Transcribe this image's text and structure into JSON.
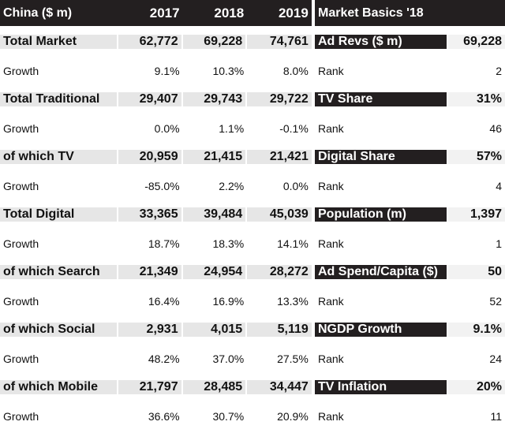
{
  "left": {
    "header": {
      "label": "China ($ m)",
      "years": [
        "2017",
        "2018",
        "2019"
      ]
    },
    "rows": [
      {
        "label": "Total Market",
        "values": [
          "62,772",
          "69,228",
          "74,761"
        ],
        "growth_label": "Growth",
        "growth": [
          "9.1%",
          "10.3%",
          "8.0%"
        ]
      },
      {
        "label": "Total Traditional",
        "values": [
          "29,407",
          "29,743",
          "29,722"
        ],
        "growth_label": "Growth",
        "growth": [
          "0.0%",
          "1.1%",
          "-0.1%"
        ]
      },
      {
        "label": "of which TV",
        "values": [
          "20,959",
          "21,415",
          "21,421"
        ],
        "growth_label": "Growth",
        "growth": [
          "-85.0%",
          "2.2%",
          "0.0%"
        ]
      },
      {
        "label": "Total Digital",
        "values": [
          "33,365",
          "39,484",
          "45,039"
        ],
        "growth_label": "Growth",
        "growth": [
          "18.7%",
          "18.3%",
          "14.1%"
        ]
      },
      {
        "label": "of which Search",
        "values": [
          "21,349",
          "24,954",
          "28,272"
        ],
        "growth_label": "Growth",
        "growth": [
          "16.4%",
          "16.9%",
          "13.3%"
        ]
      },
      {
        "label": "of which Social",
        "values": [
          "2,931",
          "4,015",
          "5,119"
        ],
        "growth_label": "Growth",
        "growth": [
          "48.2%",
          "37.0%",
          "27.5%"
        ]
      },
      {
        "label": "of which Mobile",
        "values": [
          "21,797",
          "28,485",
          "34,447"
        ],
        "growth_label": "Growth",
        "growth": [
          "36.6%",
          "30.7%",
          "20.9%"
        ]
      }
    ]
  },
  "right": {
    "header": {
      "label": "Market Basics '18"
    },
    "rows": [
      {
        "label": "Ad Revs ($ m)",
        "value": "69,228",
        "rank_label": "Rank",
        "rank": "2"
      },
      {
        "label": "TV Share",
        "value": "31%",
        "rank_label": "Rank",
        "rank": "46"
      },
      {
        "label": "Digital Share",
        "value": "57%",
        "rank_label": "Rank",
        "rank": "4"
      },
      {
        "label": "Population (m)",
        "value": "1,397",
        "rank_label": "Rank",
        "rank": "1"
      },
      {
        "label": "Ad Spend/Capita ($)",
        "value": "50",
        "rank_label": "Rank",
        "rank": "52"
      },
      {
        "label": "NGDP Growth",
        "value": "9.1%",
        "rank_label": "Rank",
        "rank": "24"
      },
      {
        "label": "TV Inflation",
        "value": "20%",
        "rank_label": "Rank",
        "rank": "11"
      }
    ]
  }
}
